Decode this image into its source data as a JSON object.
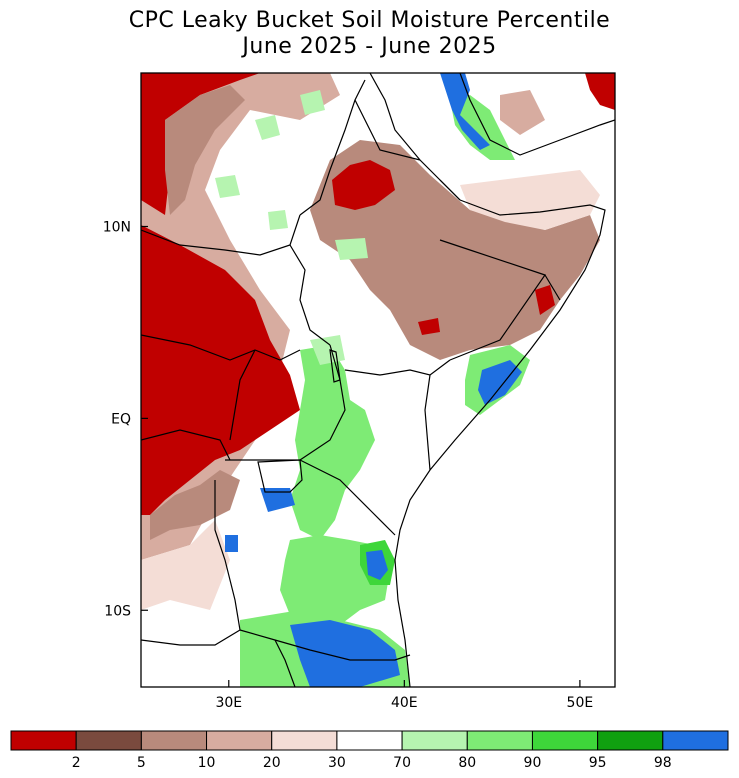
{
  "title_line1": "CPC Leaky Bucket Soil Moisture Percentile",
  "title_line2": "June 2025 - June 2025",
  "map": {
    "lon_range": [
      25,
      52
    ],
    "lat_range": [
      -14,
      18
    ],
    "lat_ticks": [
      {
        "value": 10,
        "label": "10N"
      },
      {
        "value": 0,
        "label": "EQ"
      },
      {
        "value": -10,
        "label": "10S"
      }
    ],
    "lon_ticks": [
      {
        "value": 30,
        "label": "30E"
      },
      {
        "value": 40,
        "label": "40E"
      },
      {
        "value": 50,
        "label": "50E"
      }
    ]
  },
  "legend": {
    "colors": [
      "#c00000",
      "#7a4a3e",
      "#b88a7c",
      "#d7aca0",
      "#f4ddd6",
      "#ffffff",
      "#b6f4b0",
      "#7eeb75",
      "#3ed63a",
      "#10a010",
      "#1f6fe0"
    ],
    "labels": [
      "2",
      "5",
      "10",
      "20",
      "30",
      "70",
      "80",
      "90",
      "95",
      "98"
    ]
  }
}
